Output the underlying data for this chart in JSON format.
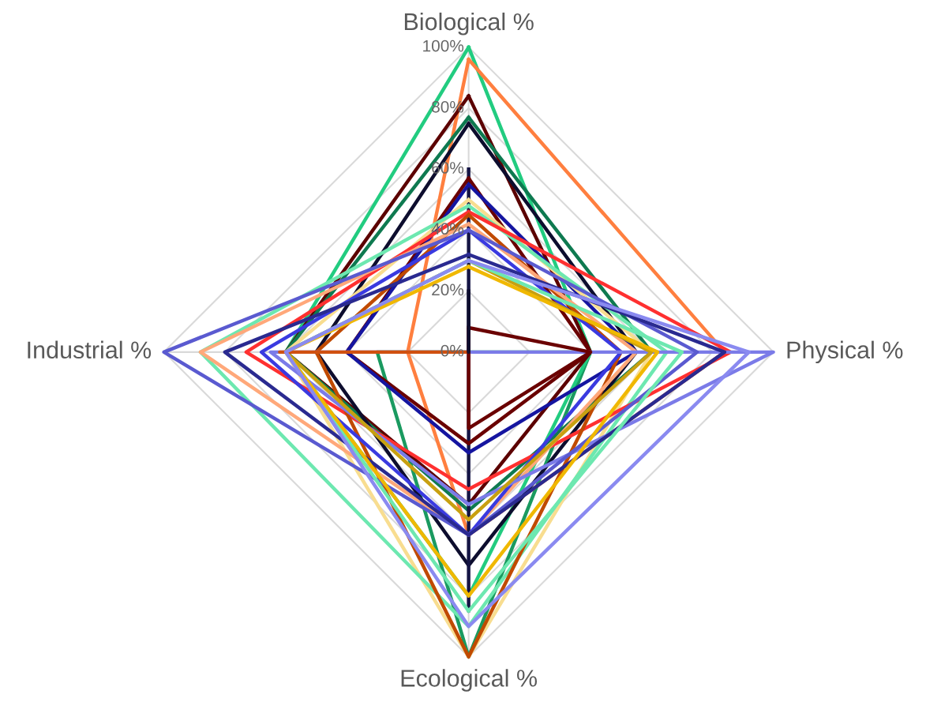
{
  "chart_data": {
    "type": "radar",
    "categories": [
      "Biological %",
      "Physical %",
      "Ecological %",
      "Industrial %"
    ],
    "ylim": [
      0,
      100
    ],
    "yticks": [
      {
        "value": 0,
        "label": "0%"
      },
      {
        "value": 20,
        "label": "20%"
      },
      {
        "value": 40,
        "label": "40%"
      },
      {
        "value": 60,
        "label": "60%"
      },
      {
        "value": 80,
        "label": "80%"
      },
      {
        "value": 100,
        "label": "100%"
      }
    ],
    "grid": true,
    "marker": "none",
    "line_style": "solid",
    "series": [
      {
        "color": "#1a9a60",
        "values": [
          0,
          40,
          100,
          30
        ]
      },
      {
        "color": "#22cc80",
        "values": [
          100,
          40,
          80,
          60
        ]
      },
      {
        "color": "#ff7f3f",
        "values": [
          96,
          84,
          60,
          20
        ]
      },
      {
        "color": "#5c0000",
        "values": [
          84,
          40,
          50,
          60
        ]
      },
      {
        "color": "#0e7a50",
        "values": [
          77,
          60,
          52,
          60
        ]
      },
      {
        "color": "#0d0d2e",
        "values": [
          75,
          55,
          70,
          50
        ]
      },
      {
        "color": "#141444",
        "values": [
          60,
          0,
          85,
          0
        ]
      },
      {
        "color": "#6a0000",
        "values": [
          57,
          40,
          30,
          40
        ]
      },
      {
        "color": "#1515a0",
        "values": [
          55,
          55,
          33,
          40
        ]
      },
      {
        "color": "#f8dd90",
        "values": [
          50,
          60,
          100,
          60
        ]
      },
      {
        "color": "#6de8b0",
        "values": [
          48,
          65,
          90,
          88
        ]
      },
      {
        "color": "#ff3030",
        "values": [
          46,
          86,
          45,
          73
        ]
      },
      {
        "color": "#c04a00",
        "values": [
          45,
          50,
          100,
          50
        ]
      },
      {
        "color": "#ffa87a",
        "values": [
          42,
          55,
          60,
          88
        ]
      },
      {
        "color": "#3a3ae0",
        "values": [
          40,
          50,
          60,
          68
        ]
      },
      {
        "color": "#7b7be8",
        "values": [
          0,
          100,
          50,
          65
        ]
      },
      {
        "color": "#5a5ad0",
        "values": [
          40,
          75,
          60,
          100
        ]
      },
      {
        "color": "#2a2a90",
        "values": [
          32,
          84,
          60,
          80
        ]
      },
      {
        "color": "#c8a010",
        "values": [
          30,
          60,
          55,
          60
        ]
      },
      {
        "color": "#6de8b0",
        "values": [
          30,
          70,
          85,
          60
        ]
      },
      {
        "color": "#f0b800",
        "values": [
          28,
          62,
          80,
          60
        ]
      },
      {
        "color": "#d05010",
        "values": [
          0,
          0,
          0,
          62
        ]
      },
      {
        "color": "#6a0000",
        "values": [
          8,
          40,
          25,
          0
        ]
      },
      {
        "color": "#0d0d2e",
        "values": [
          20,
          0,
          0,
          0
        ]
      },
      {
        "color": "#8a8af0",
        "values": [
          30,
          92,
          90,
          60
        ]
      }
    ]
  }
}
